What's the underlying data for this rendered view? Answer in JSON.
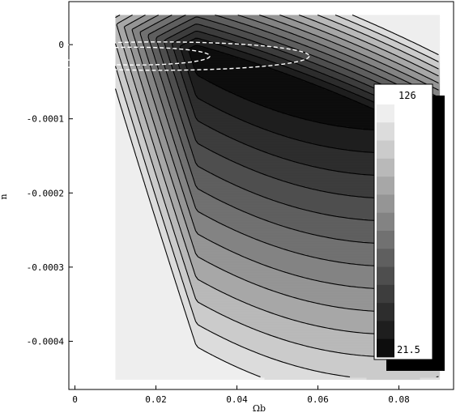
{
  "chart_data": {
    "type": "contour",
    "xlabel": "Ωb",
    "ylabel": "n",
    "xlim": [
      -0.0015,
      0.0935
    ],
    "ylim": [
      -0.000465,
      5.8e-05
    ],
    "x_ticks": [
      0,
      0.02,
      0.04,
      0.06,
      0.08
    ],
    "x_tick_labels": [
      "0",
      "0.02",
      "0.04",
      "0.06",
      "0.08"
    ],
    "y_ticks": [
      0,
      -0.0001,
      -0.0002,
      -0.0003,
      -0.0004
    ],
    "y_tick_labels": [
      "0",
      "-0.0001",
      "-0.0002",
      "-0.0003",
      "-0.0004"
    ],
    "data_region": {
      "x": [
        0.01,
        0.09
      ],
      "y": [
        -0.00045,
        4e-05
      ]
    },
    "peak": {
      "x": 0.03,
      "y": -1e-05
    },
    "contour_levels": 14,
    "dashed_contours": 2,
    "colorbar": {
      "max_label": "126",
      "min_label": "21.5",
      "levels": 14,
      "colors": [
        "#0d0d0d",
        "#1e1e1e",
        "#2d2d2d",
        "#3d3d3d",
        "#4e4e4e",
        "#5f5f5f",
        "#717171",
        "#838383",
        "#959595",
        "#a7a7a7",
        "#b9b9b9",
        "#cbcbcb",
        "#dcdcdc",
        "#eeeeee"
      ]
    }
  }
}
